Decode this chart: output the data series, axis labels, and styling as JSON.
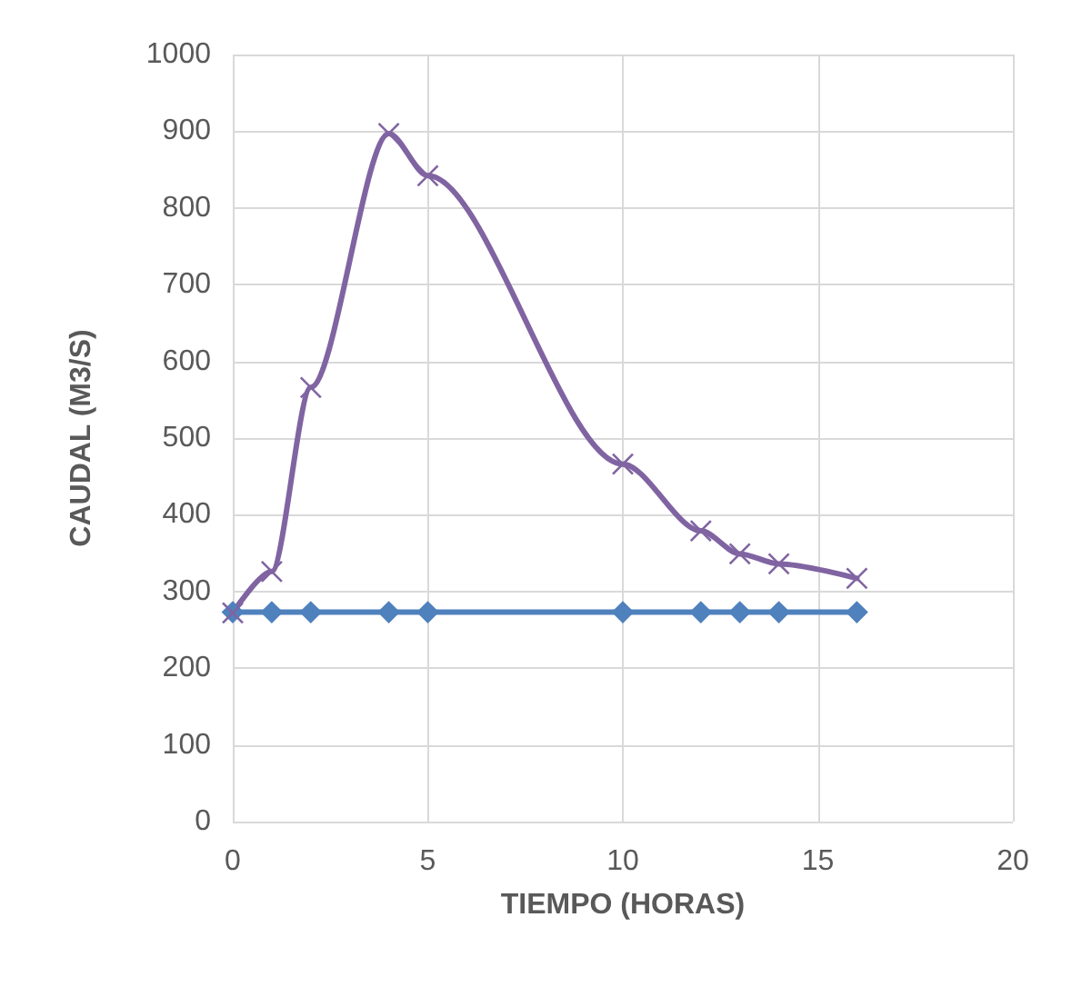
{
  "chart_data": {
    "type": "line",
    "xlabel": "TIEMPO (HORAS)",
    "ylabel": "CAUDAL (M3/S)",
    "xlim": [
      0,
      20
    ],
    "xticks": [
      0,
      5,
      10,
      15,
      20
    ],
    "ylim": [
      0,
      1000
    ],
    "yticks": [
      0,
      100,
      200,
      300,
      400,
      500,
      600,
      700,
      800,
      900,
      1000
    ],
    "grid": true,
    "series": [
      {
        "color": "#4f81bd",
        "marker": "diamond",
        "x": [
          0,
          1,
          2,
          4,
          5,
          10,
          12,
          13,
          14,
          16
        ],
        "values": [
          273,
          273,
          273,
          273,
          273,
          273,
          273,
          273,
          273,
          273
        ]
      },
      {
        "color": "#8064a2",
        "marker": "cross",
        "x": [
          0,
          1,
          2,
          4,
          5,
          10,
          12,
          13,
          14,
          16
        ],
        "values": [
          272,
          326,
          566,
          897,
          842,
          466,
          379,
          349,
          336,
          317
        ]
      }
    ]
  }
}
